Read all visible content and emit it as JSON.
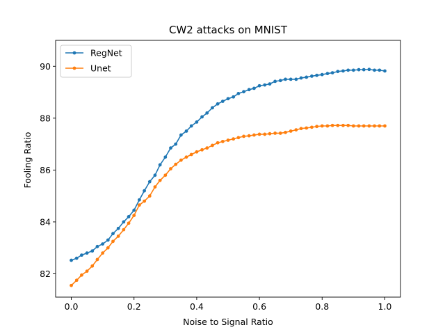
{
  "chart_data": {
    "type": "line",
    "title": "CW2 attacks on MNIST",
    "xlabel": "Noise to Signal Ratio",
    "ylabel": "Fooling Ratio",
    "xlim": [
      -0.05,
      1.05
    ],
    "ylim": [
      81.1,
      91.0
    ],
    "xticks": [
      0.0,
      0.2,
      0.4,
      0.6,
      0.8,
      1.0
    ],
    "xtick_labels": [
      "0.0",
      "0.2",
      "0.4",
      "0.6",
      "0.8",
      "1.0"
    ],
    "yticks": [
      82,
      84,
      86,
      88,
      90
    ],
    "ytick_labels": [
      "82",
      "84",
      "86",
      "88",
      "90"
    ],
    "legend_position": "top-left",
    "grid": false,
    "x": [
      0.0,
      0.017,
      0.033,
      0.05,
      0.067,
      0.083,
      0.1,
      0.117,
      0.133,
      0.15,
      0.167,
      0.183,
      0.2,
      0.217,
      0.233,
      0.25,
      0.267,
      0.283,
      0.3,
      0.317,
      0.333,
      0.35,
      0.367,
      0.383,
      0.4,
      0.417,
      0.433,
      0.45,
      0.467,
      0.483,
      0.5,
      0.517,
      0.533,
      0.55,
      0.567,
      0.583,
      0.6,
      0.617,
      0.633,
      0.65,
      0.667,
      0.683,
      0.7,
      0.717,
      0.733,
      0.75,
      0.767,
      0.783,
      0.8,
      0.817,
      0.833,
      0.85,
      0.867,
      0.883,
      0.9,
      0.917,
      0.933,
      0.95,
      0.967,
      0.983,
      1.0
    ],
    "series": [
      {
        "name": "RegNet",
        "color": "#1f77b4",
        "values": [
          82.52,
          82.6,
          82.72,
          82.8,
          82.88,
          83.05,
          83.15,
          83.3,
          83.55,
          83.75,
          84.0,
          84.2,
          84.45,
          84.85,
          85.2,
          85.55,
          85.8,
          86.2,
          86.5,
          86.85,
          87.0,
          87.35,
          87.5,
          87.7,
          87.85,
          88.05,
          88.2,
          88.4,
          88.55,
          88.65,
          88.75,
          88.82,
          88.95,
          89.02,
          89.1,
          89.15,
          89.25,
          89.28,
          89.32,
          89.42,
          89.45,
          89.5,
          89.5,
          89.5,
          89.55,
          89.58,
          89.62,
          89.65,
          89.68,
          89.72,
          89.75,
          89.8,
          89.82,
          89.85,
          89.85,
          89.87,
          89.87,
          89.88,
          89.85,
          89.85,
          89.82
        ]
      },
      {
        "name": "Unet",
        "color": "#ff7f0e",
        "values": [
          81.55,
          81.75,
          81.95,
          82.1,
          82.3,
          82.55,
          82.8,
          83.0,
          83.25,
          83.45,
          83.7,
          83.95,
          84.25,
          84.65,
          84.8,
          85.0,
          85.35,
          85.6,
          85.8,
          86.05,
          86.22,
          86.38,
          86.5,
          86.6,
          86.7,
          86.78,
          86.85,
          86.95,
          87.05,
          87.1,
          87.15,
          87.2,
          87.25,
          87.3,
          87.32,
          87.35,
          87.38,
          87.38,
          87.4,
          87.42,
          87.42,
          87.45,
          87.5,
          87.55,
          87.6,
          87.62,
          87.65,
          87.68,
          87.7,
          87.7,
          87.72,
          87.72,
          87.72,
          87.72,
          87.7,
          87.7,
          87.7,
          87.7,
          87.7,
          87.7,
          87.7
        ]
      }
    ]
  }
}
